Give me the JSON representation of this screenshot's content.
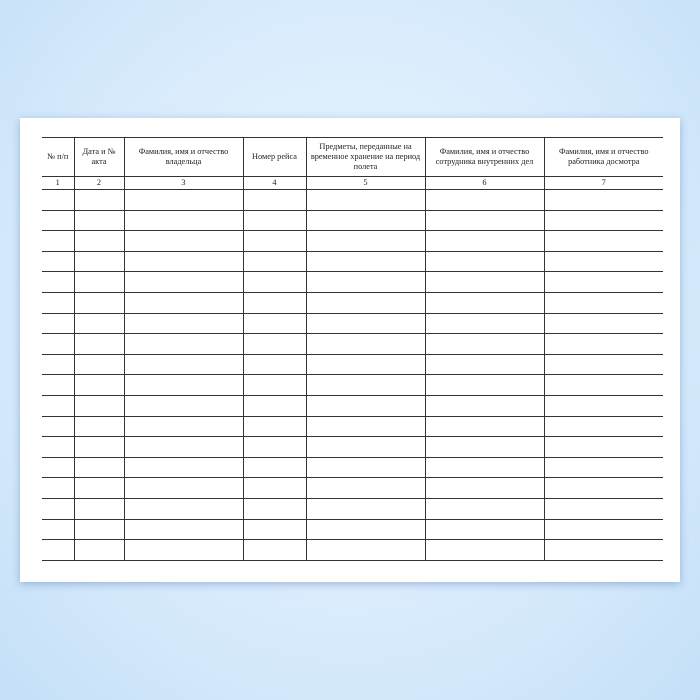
{
  "form": {
    "headers": [
      "№ п/п",
      "Дата и № акта",
      "Фамилия, имя и отчество владельца",
      "Номер рейса",
      "Предметы, переданные на временное хранение на период полета",
      "Фамилия, имя и отчество сотрудника внутренних дел",
      "Фамилия, имя и отчество работника досмотра"
    ],
    "column_numbers": [
      "1",
      "2",
      "3",
      "4",
      "5",
      "6",
      "7"
    ],
    "empty_rows": 18
  }
}
